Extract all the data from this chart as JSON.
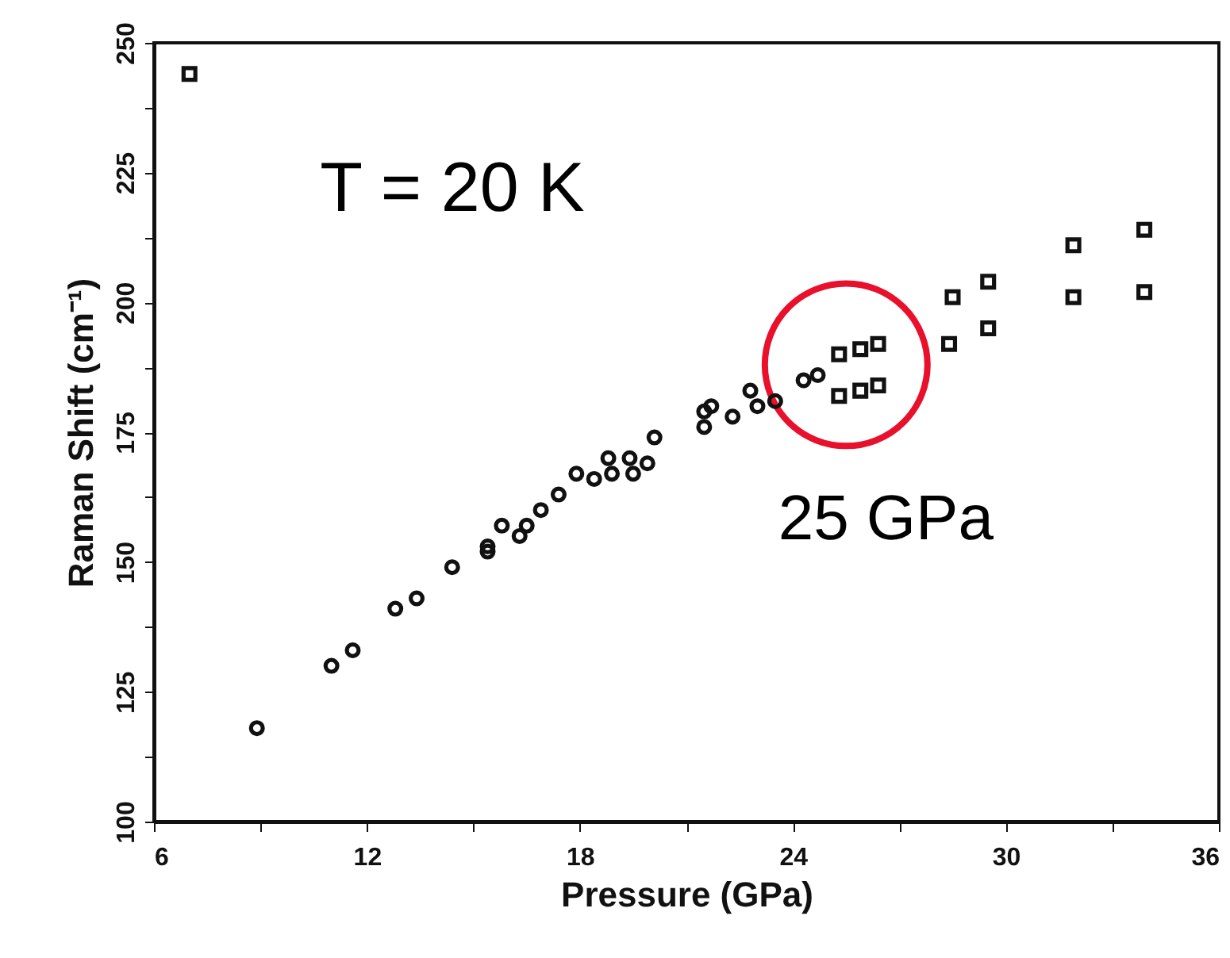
{
  "chart_data": {
    "type": "scatter",
    "xlabel": "Pressure (GPa)",
    "ylabel": "Raman Shift (cm⁻¹)",
    "xlim": [
      6,
      36
    ],
    "ylim": [
      100,
      250
    ],
    "xticks": [
      6,
      {
        "value": 9,
        "label": null
      },
      12,
      {
        "value": 15,
        "label": null
      },
      18,
      {
        "value": 21,
        "label": null
      },
      24,
      {
        "value": 27,
        "label": null
      },
      30,
      {
        "value": 33,
        "label": null
      },
      36
    ],
    "yticks": [
      100,
      {
        "value": 112.5,
        "label": null
      },
      125,
      {
        "value": 137.5,
        "label": null
      },
      150,
      {
        "value": 162.5,
        "label": null
      },
      175,
      {
        "value": 187.5,
        "label": null
      },
      200,
      {
        "value": 212.5,
        "label": null
      },
      225,
      {
        "value": 237.5,
        "label": null
      },
      250
    ],
    "grid": false,
    "series": [
      {
        "color": "#111111",
        "marker": "circle",
        "x": [
          8.9,
          11.0,
          11.6,
          12.8,
          13.4,
          14.4,
          15.4,
          15.4,
          15.8,
          16.3,
          16.5,
          16.9,
          17.4,
          17.9,
          18.4,
          18.8,
          18.9,
          19.4,
          19.5,
          19.9,
          20.1,
          21.5,
          21.7,
          21.5,
          22.3,
          22.8,
          23.0,
          23.5,
          24.3,
          24.7
        ],
        "values": [
          118,
          130,
          133,
          141,
          143,
          149,
          153,
          152,
          157,
          155,
          157,
          160,
          163,
          167,
          166,
          170,
          167,
          170,
          167,
          169,
          174,
          179,
          180,
          176,
          178,
          183,
          180,
          181,
          185,
          186
        ]
      },
      {
        "color": "#111111",
        "marker": "square",
        "x": [
          7.0,
          25.3,
          25.9,
          26.4,
          25.3,
          25.9,
          26.4,
          28.5,
          28.4,
          29.5,
          29.5,
          31.9,
          31.9,
          33.9,
          33.9
        ],
        "values": [
          244,
          190,
          191,
          192,
          182,
          183,
          184,
          201,
          192,
          204,
          195,
          211,
          201,
          214,
          202
        ]
      }
    ],
    "annotations": [
      "T = 20 K",
      {
        "text": "25 GPa",
        "x": 25.5,
        "y": 188
      }
    ]
  }
}
